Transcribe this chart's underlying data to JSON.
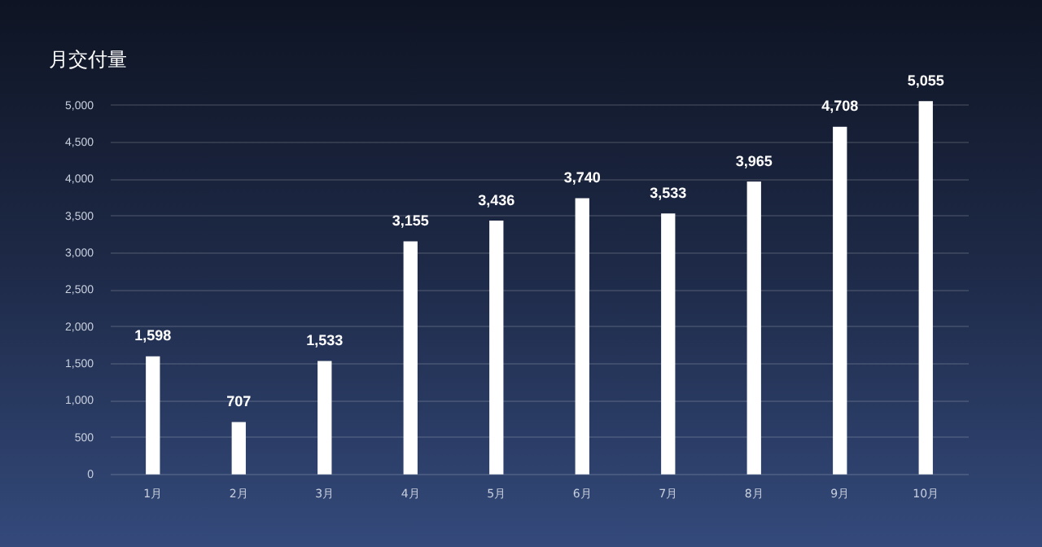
{
  "chart_data": {
    "type": "bar",
    "title": "月交付量",
    "categories": [
      "1月",
      "2月",
      "3月",
      "4月",
      "5月",
      "6月",
      "7月",
      "8月",
      "9月",
      "10月"
    ],
    "values": [
      1598,
      707,
      1533,
      3155,
      3436,
      3740,
      3533,
      3965,
      4708,
      5055
    ],
    "value_labels": [
      "1,598",
      "707",
      "1,533",
      "3,155",
      "3,436",
      "3,740",
      "3,533",
      "3,965",
      "4,708",
      "5,055"
    ],
    "color": "#ffffff",
    "ylim": [
      0,
      5100
    ],
    "yticks": [
      {
        "value": 0,
        "label": "0"
      },
      {
        "value": 500,
        "label": "500"
      },
      {
        "value": 1000,
        "label": "1,000"
      },
      {
        "value": 1500,
        "label": "1,500"
      },
      {
        "value": 2000,
        "label": "2,000"
      },
      {
        "value": 2500,
        "label": "2,500"
      },
      {
        "value": 3000,
        "label": "3,000"
      },
      {
        "value": 3500,
        "label": "3,500"
      },
      {
        "value": 4000,
        "label": "4,000"
      },
      {
        "value": 4500,
        "label": "4,500"
      },
      {
        "value": 5000,
        "label": "5,000"
      }
    ],
    "grid": "y",
    "legend": false
  }
}
